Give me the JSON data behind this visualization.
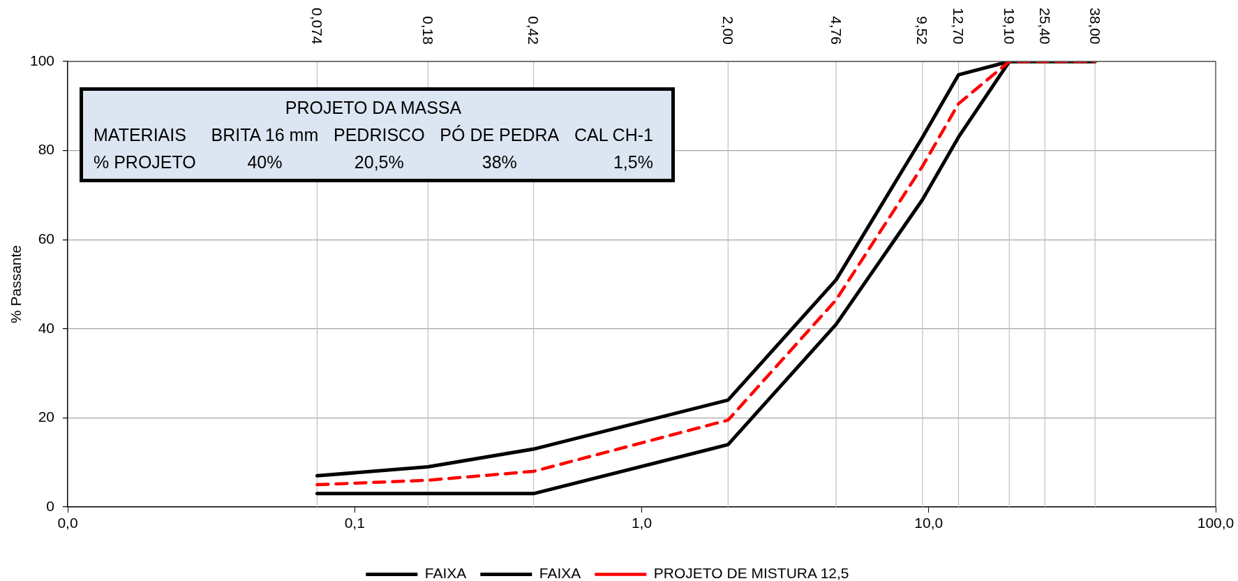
{
  "chart_data": {
    "type": "line",
    "x": [
      0.074,
      0.18,
      0.42,
      2.0,
      4.76,
      9.52,
      12.7,
      19.1,
      25.4,
      38.0
    ],
    "series": [
      {
        "name": "FAIXA",
        "color": "#000000",
        "line_style": "solid",
        "values": [
          7,
          9,
          13,
          24,
          51,
          83,
          97,
          100,
          100,
          100
        ]
      },
      {
        "name": "FAIXA",
        "color": "#000000",
        "line_style": "solid",
        "values": [
          3,
          3,
          3,
          14,
          41,
          69,
          83,
          100,
          100,
          100
        ]
      },
      {
        "name": "PROJETO DE MISTURA 12,5",
        "color": "#ff0000",
        "line_style": "dashed",
        "values": [
          5,
          6,
          8,
          19.5,
          46.5,
          76.5,
          90.5,
          100,
          100,
          100
        ]
      }
    ],
    "xlim": [
      0.01,
      100
    ],
    "xticks": [
      {
        "value": 0.01,
        "label": "0,0"
      },
      {
        "value": 0.1,
        "label": "0,1"
      },
      {
        "value": 1,
        "label": "1,0"
      },
      {
        "value": 10,
        "label": "10,0"
      },
      {
        "value": 100,
        "label": "100,0"
      }
    ],
    "ylim": [
      0,
      100
    ],
    "yticks": [
      0,
      20,
      40,
      60,
      80,
      100
    ],
    "ref_lines": [
      {
        "axis": "x",
        "value": 0.074,
        "label": "0,074",
        "color": "#c0c0c0"
      },
      {
        "axis": "x",
        "value": 0.18,
        "label": "0,18",
        "color": "#c0c0c0"
      },
      {
        "axis": "x",
        "value": 0.42,
        "label": "0,42",
        "color": "#c0c0c0"
      },
      {
        "axis": "x",
        "value": 2.0,
        "label": "2,00",
        "color": "#c0c0c0"
      },
      {
        "axis": "x",
        "value": 4.76,
        "label": "4,76",
        "color": "#c0c0c0"
      },
      {
        "axis": "x",
        "value": 9.52,
        "label": "9,52",
        "color": "#c0c0c0"
      },
      {
        "axis": "x",
        "value": 12.7,
        "label": "12,70",
        "color": "#c0c0c0"
      },
      {
        "axis": "x",
        "value": 19.1,
        "label": "19,10",
        "color": "#c0c0c0"
      },
      {
        "axis": "x",
        "value": 25.4,
        "label": "25,40",
        "color": "#c0c0c0"
      },
      {
        "axis": "x",
        "value": 38.0,
        "label": "38,00",
        "color": "#c0c0c0"
      }
    ],
    "ylabel": "% Passante",
    "log": "x",
    "grid": "y",
    "legend": "bottom",
    "annotations": [
      "PROJETO DA MASSA",
      "MATERIAIS",
      "BRITA 16 mm",
      "PEDRISCO",
      "PÓ DE PEDRA",
      "CAL CH-1",
      "% PROJETO",
      "40%",
      "20,5%",
      "38%",
      "1,5%"
    ]
  }
}
